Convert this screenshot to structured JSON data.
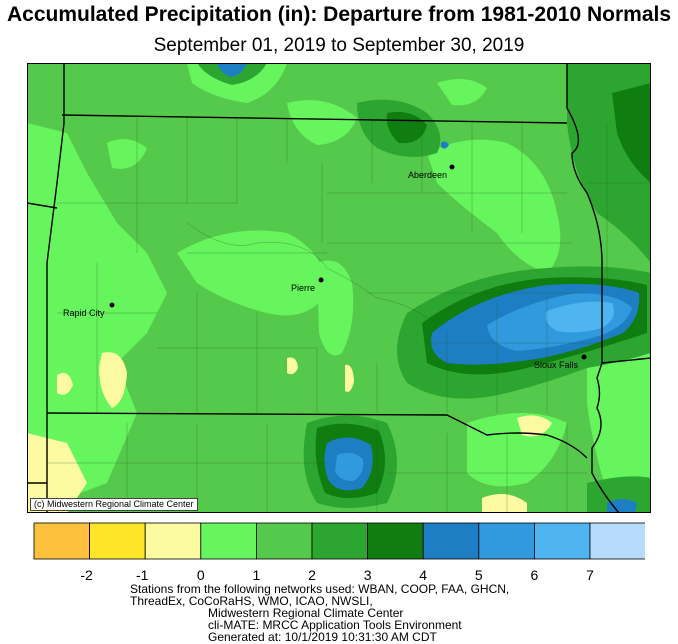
{
  "header": {
    "title": "Accumulated Precipitation (in): Departure from 1981-2010 Normals",
    "subtitle": "September 01, 2019 to September 30, 2019"
  },
  "map": {
    "copyright": "(c) Midwestern Regional Climate Center",
    "cities": [
      {
        "name": "Aberdeen"
      },
      {
        "name": "Pierre"
      },
      {
        "name": "Rapid City"
      },
      {
        "name": "Sioux Falls"
      }
    ]
  },
  "legend": {
    "colors": [
      "#fdc13e",
      "#fde527",
      "#fdfba1",
      "#67f55e",
      "#55c94b",
      "#2ca630",
      "#0f7d10",
      "#1d7ec3",
      "#3199dd",
      "#4fb5f0",
      "#b7dcfb"
    ],
    "ticks": [
      "-2",
      "-1",
      "0",
      "1",
      "2",
      "3",
      "4",
      "5",
      "6",
      "7"
    ]
  },
  "footer": {
    "line1": "Stations from the following networks used:  WBAN, COOP, FAA, GHCN,",
    "line2": "ThreadEx, CoCoRaHS, WMO, ICAO, NWSLI,",
    "line3": "Midwestern Regional Climate Center",
    "line4": "cli-MATE: MRCC Application Tools Environment",
    "line5": "Generated at: 10/1/2019 10:31:30 AM CDT"
  }
}
